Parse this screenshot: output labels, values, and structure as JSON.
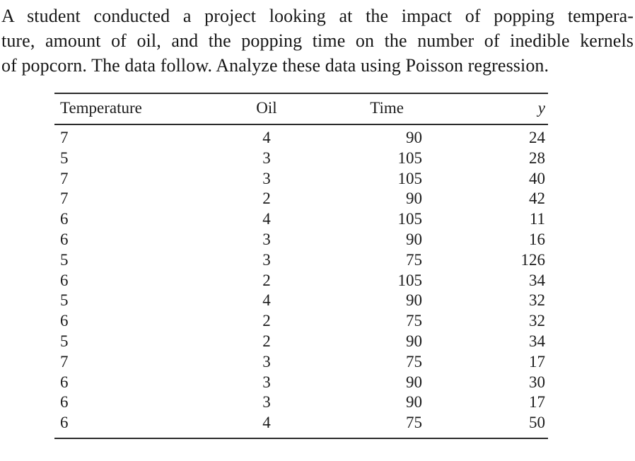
{
  "problem": {
    "lines": [
      "A student conducted a project looking at the impact of popping tempera-",
      "ture, amount of oil, and the popping time on the number of inedible kernels",
      "of popcorn. The data follow. Analyze these data using Poisson regression."
    ]
  },
  "table": {
    "columns": [
      "Temperature",
      "Oil",
      "Time",
      "y"
    ],
    "rows": [
      [
        7,
        4,
        90,
        24
      ],
      [
        5,
        3,
        105,
        28
      ],
      [
        7,
        3,
        105,
        40
      ],
      [
        7,
        2,
        90,
        42
      ],
      [
        6,
        4,
        105,
        11
      ],
      [
        6,
        3,
        90,
        16
      ],
      [
        5,
        3,
        75,
        126
      ],
      [
        6,
        2,
        105,
        34
      ],
      [
        5,
        4,
        90,
        32
      ],
      [
        6,
        2,
        75,
        32
      ],
      [
        5,
        2,
        90,
        34
      ],
      [
        7,
        3,
        75,
        17
      ],
      [
        6,
        3,
        90,
        30
      ],
      [
        6,
        3,
        90,
        17
      ],
      [
        6,
        4,
        75,
        50
      ]
    ]
  },
  "colors": {
    "text": "#161616",
    "table_text": "#1b1b1b",
    "rule": "#2b2b2b",
    "background": "#ffffff"
  }
}
